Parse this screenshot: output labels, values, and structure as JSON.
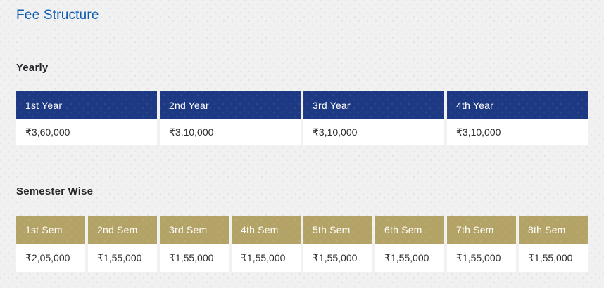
{
  "page": {
    "title": "Fee Structure"
  },
  "colors": {
    "title": "#0d5eae",
    "yearly_header_bg": "#1d3983",
    "semester_header_bg": "#b3a366",
    "header_text": "#ffffff",
    "cell_text": "#2d2d2d",
    "page_background": "#f1f1f2"
  },
  "sections": [
    {
      "id": "yearly",
      "label": "Yearly",
      "header_bg": "#1d3983",
      "columns": [
        "1st Year",
        "2nd Year",
        "3rd Year",
        "4th Year"
      ],
      "values": [
        "₹3,60,000",
        "₹3,10,000",
        "₹3,10,000",
        "₹3,10,000"
      ]
    },
    {
      "id": "semester",
      "label": "Semester Wise",
      "header_bg": "#b3a366",
      "columns": [
        "1st Sem",
        "2nd Sem",
        "3rd Sem",
        "4th Sem",
        "5th Sem",
        "6th Sem",
        "7th Sem",
        "8th Sem"
      ],
      "values": [
        "₹2,05,000",
        "₹1,55,000",
        "₹1,55,000",
        "₹1,55,000",
        "₹1,55,000",
        "₹1,55,000",
        "₹1,55,000",
        "₹1,55,000"
      ]
    }
  ]
}
